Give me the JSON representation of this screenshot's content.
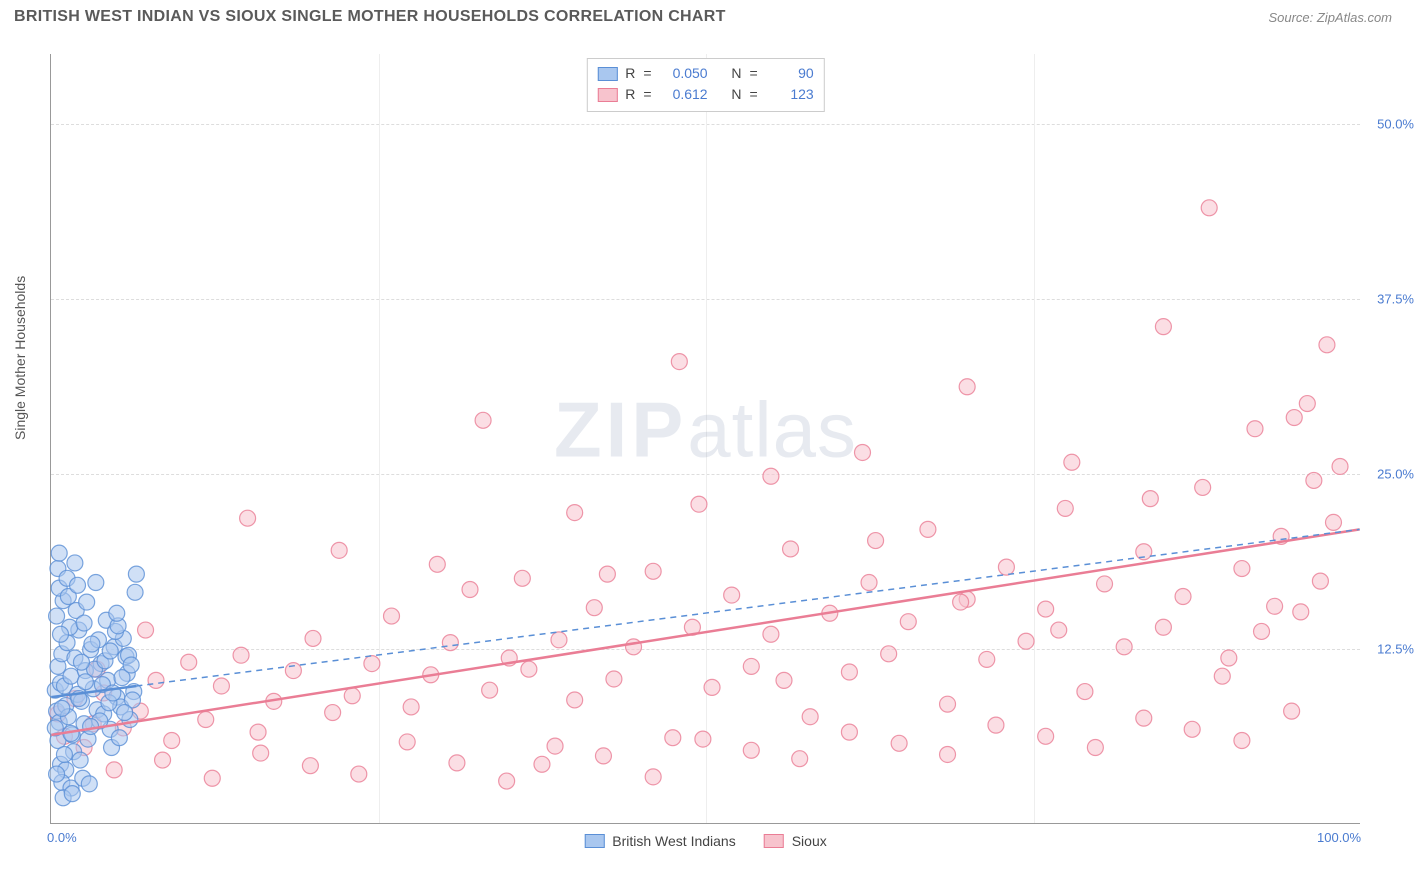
{
  "header": {
    "title": "BRITISH WEST INDIAN VS SIOUX SINGLE MOTHER HOUSEHOLDS CORRELATION CHART",
    "source": "Source: ZipAtlas.com"
  },
  "watermark": {
    "zip": "ZIP",
    "atlas": "atlas"
  },
  "axes": {
    "y_label": "Single Mother Households",
    "x_min": 0,
    "x_max": 100,
    "y_min": 0,
    "y_max": 55,
    "y_ticks": [
      12.5,
      25.0,
      37.5,
      50.0
    ],
    "y_tick_labels": [
      "12.5%",
      "25.0%",
      "37.5%",
      "50.0%"
    ],
    "x_ticks": [
      0,
      100
    ],
    "x_tick_labels": [
      "0.0%",
      "100.0%"
    ],
    "x_gridlines": [
      25,
      50,
      75
    ]
  },
  "colors": {
    "blue_fill": "#a9c7ef",
    "blue_stroke": "#5a8fd6",
    "pink_fill": "#f7c3cd",
    "pink_stroke": "#ea7d95",
    "axis_text": "#4a7bd0",
    "grid": "#dddddd"
  },
  "legend_stats": {
    "rows": [
      {
        "swatch_fill": "#a9c7ef",
        "swatch_stroke": "#5a8fd6",
        "R": "0.050",
        "N": "90"
      },
      {
        "swatch_fill": "#f7c3cd",
        "swatch_stroke": "#ea7d95",
        "R": "0.612",
        "N": "123"
      }
    ],
    "labels": {
      "R": "R",
      "eq": "=",
      "N": "N"
    }
  },
  "footer_legend": {
    "items": [
      {
        "swatch_fill": "#a9c7ef",
        "swatch_stroke": "#5a8fd6",
        "label": "British West Indians"
      },
      {
        "swatch_fill": "#f7c3cd",
        "swatch_stroke": "#ea7d95",
        "label": "Sioux"
      }
    ]
  },
  "series": {
    "marker_radius": 8,
    "marker_opacity": 0.55,
    "line_width": 2.5,
    "blue": {
      "color_fill": "#a9c7ef",
      "color_stroke": "#5a8fd6",
      "trend_solid": {
        "x1": 0,
        "y1": 9.0,
        "x2": 6.5,
        "y2": 9.8
      },
      "trend_dashed": {
        "x1": 6.5,
        "y1": 9.8,
        "x2": 100,
        "y2": 21.0
      },
      "points": [
        [
          0.3,
          9.5
        ],
        [
          0.4,
          8.0
        ],
        [
          0.5,
          11.2
        ],
        [
          0.6,
          7.2
        ],
        [
          0.7,
          10.0
        ],
        [
          0.8,
          12.1
        ],
        [
          0.5,
          5.9
        ],
        [
          1.0,
          9.8
        ],
        [
          1.1,
          8.4
        ],
        [
          1.2,
          12.9
        ],
        [
          1.3,
          7.6
        ],
        [
          1.5,
          10.5
        ],
        [
          1.6,
          6.3
        ],
        [
          1.8,
          11.8
        ],
        [
          2.0,
          9.2
        ],
        [
          2.1,
          13.8
        ],
        [
          2.3,
          8.7
        ],
        [
          2.5,
          7.1
        ],
        [
          2.6,
          10.9
        ],
        [
          2.8,
          6.0
        ],
        [
          3.0,
          12.4
        ],
        [
          0.4,
          14.8
        ],
        [
          0.9,
          15.9
        ],
        [
          1.4,
          14.0
        ],
        [
          0.7,
          4.2
        ],
        [
          1.1,
          3.8
        ],
        [
          1.7,
          5.1
        ],
        [
          2.2,
          4.5
        ],
        [
          0.6,
          16.8
        ],
        [
          1.9,
          15.2
        ],
        [
          0.8,
          2.9
        ],
        [
          1.5,
          2.5
        ],
        [
          2.4,
          3.2
        ],
        [
          3.2,
          9.6
        ],
        [
          3.5,
          8.1
        ],
        [
          3.8,
          11.4
        ],
        [
          4.0,
          7.8
        ],
        [
          4.3,
          10.2
        ],
        [
          4.5,
          6.7
        ],
        [
          4.8,
          12.6
        ],
        [
          5.0,
          9.0
        ],
        [
          5.3,
          8.3
        ],
        [
          5.5,
          13.2
        ],
        [
          5.8,
          10.7
        ],
        [
          6.0,
          7.4
        ],
        [
          0.5,
          18.2
        ],
        [
          1.2,
          17.5
        ],
        [
          2.7,
          15.8
        ],
        [
          4.2,
          14.5
        ],
        [
          3.6,
          13.1
        ],
        [
          0.9,
          1.8
        ],
        [
          1.6,
          2.1
        ],
        [
          2.9,
          2.8
        ],
        [
          4.6,
          5.4
        ],
        [
          5.2,
          6.1
        ],
        [
          5.7,
          11.9
        ],
        [
          6.3,
          9.4
        ],
        [
          0.3,
          6.8
        ],
        [
          0.7,
          13.5
        ],
        [
          1.3,
          16.2
        ],
        [
          2.0,
          17.0
        ],
        [
          2.5,
          14.3
        ],
        [
          3.3,
          11.0
        ],
        [
          3.9,
          9.9
        ],
        [
          4.4,
          8.6
        ],
        [
          4.9,
          13.7
        ],
        [
          5.4,
          10.4
        ],
        [
          5.9,
          12.0
        ],
        [
          6.2,
          8.8
        ],
        [
          0.4,
          3.5
        ],
        [
          1.0,
          4.9
        ],
        [
          1.5,
          6.4
        ],
        [
          2.1,
          8.9
        ],
        [
          2.6,
          10.1
        ],
        [
          3.1,
          12.8
        ],
        [
          3.7,
          7.3
        ],
        [
          4.1,
          11.6
        ],
        [
          4.7,
          9.3
        ],
        [
          5.1,
          14.1
        ],
        [
          5.6,
          7.9
        ],
        [
          6.1,
          11.3
        ],
        [
          0.6,
          19.3
        ],
        [
          6.4,
          16.5
        ],
        [
          6.5,
          17.8
        ],
        [
          3.4,
          17.2
        ],
        [
          1.8,
          18.6
        ],
        [
          0.8,
          8.2
        ],
        [
          2.3,
          11.5
        ],
        [
          3.0,
          6.9
        ],
        [
          4.5,
          12.3
        ],
        [
          5.0,
          15.0
        ]
      ]
    },
    "pink": {
      "color_fill": "#f7c3cd",
      "color_stroke": "#ea7d95",
      "trend_solid": {
        "x1": 0,
        "y1": 6.3,
        "x2": 100,
        "y2": 21.0
      },
      "points": [
        [
          0.5,
          7.8
        ],
        [
          1.0,
          6.2
        ],
        [
          1.8,
          8.9
        ],
        [
          2.5,
          5.4
        ],
        [
          3.2,
          7.1
        ],
        [
          4.0,
          9.3
        ],
        [
          5.5,
          6.8
        ],
        [
          6.8,
          8.0
        ],
        [
          8.0,
          10.2
        ],
        [
          9.2,
          5.9
        ],
        [
          10.5,
          11.5
        ],
        [
          11.8,
          7.4
        ],
        [
          13.0,
          9.8
        ],
        [
          14.5,
          12.0
        ],
        [
          15.8,
          6.5
        ],
        [
          17.0,
          8.7
        ],
        [
          18.5,
          10.9
        ],
        [
          20.0,
          13.2
        ],
        [
          21.5,
          7.9
        ],
        [
          23.0,
          9.1
        ],
        [
          24.5,
          11.4
        ],
        [
          26.0,
          14.8
        ],
        [
          27.5,
          8.3
        ],
        [
          29.0,
          10.6
        ],
        [
          30.5,
          12.9
        ],
        [
          32.0,
          16.7
        ],
        [
          33.5,
          9.5
        ],
        [
          35.0,
          11.8
        ],
        [
          36.0,
          17.5
        ],
        [
          37.5,
          4.2
        ],
        [
          38.8,
          13.1
        ],
        [
          40.0,
          8.8
        ],
        [
          41.5,
          15.4
        ],
        [
          43.0,
          10.3
        ],
        [
          44.5,
          12.6
        ],
        [
          46.0,
          18.0
        ],
        [
          47.5,
          6.1
        ],
        [
          49.0,
          14.0
        ],
        [
          50.5,
          9.7
        ],
        [
          52.0,
          16.3
        ],
        [
          53.5,
          11.2
        ],
        [
          55.0,
          13.5
        ],
        [
          56.5,
          19.6
        ],
        [
          58.0,
          7.6
        ],
        [
          59.5,
          15.0
        ],
        [
          61.0,
          10.8
        ],
        [
          62.5,
          17.2
        ],
        [
          64.0,
          12.1
        ],
        [
          65.5,
          14.4
        ],
        [
          67.0,
          21.0
        ],
        [
          68.5,
          8.5
        ],
        [
          70.0,
          16.0
        ],
        [
          71.5,
          11.7
        ],
        [
          73.0,
          18.3
        ],
        [
          74.5,
          13.0
        ],
        [
          76.0,
          15.3
        ],
        [
          77.5,
          22.5
        ],
        [
          79.0,
          9.4
        ],
        [
          80.5,
          17.1
        ],
        [
          82.0,
          12.6
        ],
        [
          83.5,
          19.4
        ],
        [
          85.0,
          14.0
        ],
        [
          86.5,
          16.2
        ],
        [
          88.0,
          24.0
        ],
        [
          89.5,
          10.5
        ],
        [
          91.0,
          18.2
        ],
        [
          92.5,
          13.7
        ],
        [
          94.0,
          20.5
        ],
        [
          95.5,
          15.1
        ],
        [
          97.0,
          17.3
        ],
        [
          98.5,
          25.5
        ],
        [
          4.8,
          3.8
        ],
        [
          8.5,
          4.5
        ],
        [
          12.3,
          3.2
        ],
        [
          16.0,
          5.0
        ],
        [
          19.8,
          4.1
        ],
        [
          23.5,
          3.5
        ],
        [
          27.2,
          5.8
        ],
        [
          31.0,
          4.3
        ],
        [
          34.8,
          3.0
        ],
        [
          38.5,
          5.5
        ],
        [
          42.2,
          4.8
        ],
        [
          46.0,
          3.3
        ],
        [
          49.8,
          6.0
        ],
        [
          53.5,
          5.2
        ],
        [
          57.2,
          4.6
        ],
        [
          61.0,
          6.5
        ],
        [
          64.8,
          5.7
        ],
        [
          68.5,
          4.9
        ],
        [
          72.2,
          7.0
        ],
        [
          76.0,
          6.2
        ],
        [
          79.8,
          5.4
        ],
        [
          83.5,
          7.5
        ],
        [
          87.2,
          6.7
        ],
        [
          91.0,
          5.9
        ],
        [
          94.8,
          8.0
        ],
        [
          15.0,
          21.8
        ],
        [
          22.0,
          19.5
        ],
        [
          33.0,
          28.8
        ],
        [
          40.0,
          22.2
        ],
        [
          48.0,
          33.0
        ],
        [
          55.0,
          24.8
        ],
        [
          62.0,
          26.5
        ],
        [
          70.0,
          31.2
        ],
        [
          78.0,
          25.8
        ],
        [
          85.0,
          35.5
        ],
        [
          92.0,
          28.2
        ],
        [
          96.0,
          30.0
        ],
        [
          97.5,
          34.2
        ],
        [
          88.5,
          44.0
        ],
        [
          95.0,
          29.0
        ],
        [
          98.0,
          21.5
        ],
        [
          93.5,
          15.5
        ],
        [
          96.5,
          24.5
        ],
        [
          90.0,
          11.8
        ],
        [
          84.0,
          23.2
        ],
        [
          77.0,
          13.8
        ],
        [
          69.5,
          15.8
        ],
        [
          63.0,
          20.2
        ],
        [
          56.0,
          10.2
        ],
        [
          49.5,
          22.8
        ],
        [
          42.5,
          17.8
        ],
        [
          36.5,
          11.0
        ],
        [
          29.5,
          18.5
        ],
        [
          3.5,
          11.0
        ],
        [
          7.2,
          13.8
        ]
      ]
    }
  }
}
